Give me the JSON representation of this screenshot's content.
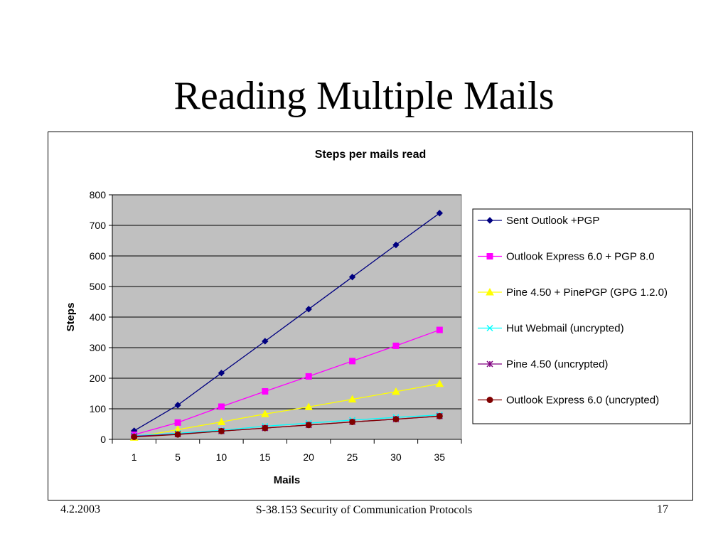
{
  "slide": {
    "title": "Reading Multiple Mails",
    "footer": {
      "date": "4.2.2003",
      "course": "S-38.153 Security of Communication Protocols",
      "page": "17"
    }
  },
  "chart_data": {
    "type": "line",
    "title": "Steps per mails read",
    "xlabel": "Mails",
    "ylabel": "Steps",
    "categories": [
      "1",
      "5",
      "10",
      "15",
      "20",
      "25",
      "30",
      "35"
    ],
    "ylim": [
      0,
      800
    ],
    "yticks": [
      0,
      100,
      200,
      300,
      400,
      500,
      600,
      700,
      800
    ],
    "grid": true,
    "plot_background": "#c0c0c0",
    "legend_position": "right",
    "series": [
      {
        "name": "Sent Outlook +PGP",
        "color": "#000080",
        "marker": "diamond",
        "values": [
          28,
          112,
          217,
          321,
          426,
          531,
          636,
          740
        ]
      },
      {
        "name": "Outlook Express 6.0 + PGP 8.0",
        "color": "#ff00ff",
        "marker": "square",
        "values": [
          15,
          55,
          107,
          157,
          206,
          256,
          306,
          358
        ]
      },
      {
        "name": "Pine 4.50 + PinePGP (GPG 1.2.0)",
        "color": "#ffff00",
        "marker": "triangle",
        "values": [
          6,
          32,
          57,
          83,
          106,
          131,
          156,
          182
        ]
      },
      {
        "name": "Hut Webmail (uncrypted)",
        "color": "#00ffff",
        "marker": "x",
        "values": [
          12,
          20,
          30,
          43,
          53,
          63,
          72,
          80
        ]
      },
      {
        "name": "Pine 4.50 (uncrypted)",
        "color": "#800080",
        "marker": "star",
        "values": [
          10,
          17,
          27,
          37,
          47,
          57,
          66,
          76
        ]
      },
      {
        "name": "Outlook Express 6.0 (uncrypted)",
        "color": "#800000",
        "marker": "circle",
        "values": [
          8,
          16,
          27,
          37,
          47,
          57,
          66,
          76
        ]
      }
    ]
  }
}
